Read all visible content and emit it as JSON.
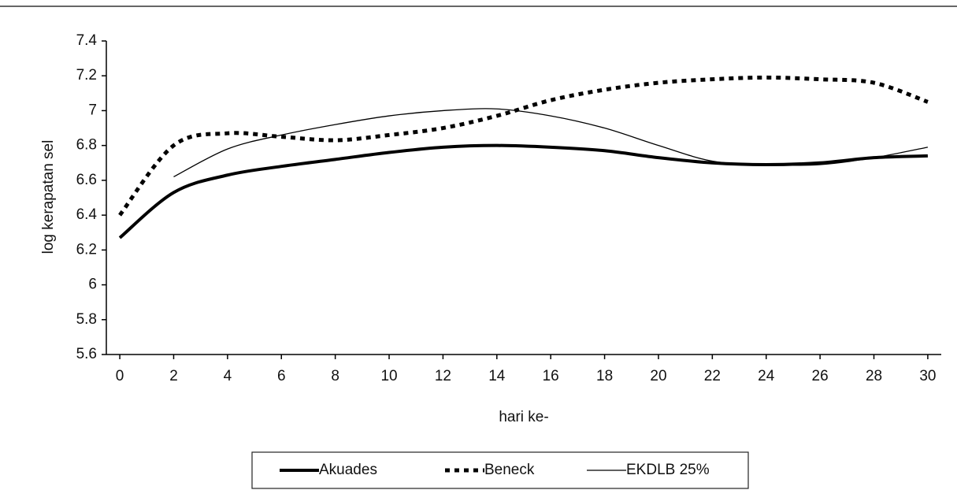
{
  "chart_data": {
    "type": "line",
    "x_label": "hari ke-",
    "y_label": "log kerapatan sel",
    "x": [
      0,
      2,
      4,
      6,
      8,
      10,
      12,
      14,
      16,
      18,
      20,
      22,
      24,
      26,
      28,
      30
    ],
    "series": [
      {
        "name": "Akuades",
        "color": "#000000",
        "style": "solid-thick",
        "values": [
          6.27,
          6.53,
          6.63,
          6.68,
          6.72,
          6.76,
          6.79,
          6.8,
          6.79,
          6.77,
          6.73,
          6.7,
          6.69,
          6.7,
          6.73,
          6.74
        ]
      },
      {
        "name": "Beneck",
        "color": "#000000",
        "style": "dotted",
        "values": [
          6.4,
          6.8,
          6.87,
          6.85,
          6.83,
          6.86,
          6.9,
          6.97,
          7.06,
          7.12,
          7.16,
          7.18,
          7.19,
          7.18,
          7.16,
          7.05
        ]
      },
      {
        "name": "EKDLB 25%",
        "color": "#000000",
        "style": "solid-thin",
        "values": [
          null,
          6.62,
          6.78,
          6.86,
          6.92,
          6.97,
          7.0,
          7.01,
          6.97,
          6.9,
          6.8,
          6.71,
          6.69,
          6.69,
          6.73,
          6.79
        ]
      }
    ],
    "xlim": [
      -0.5,
      30.5
    ],
    "xticks": [
      0,
      2,
      4,
      6,
      8,
      10,
      12,
      14,
      16,
      18,
      20,
      22,
      24,
      26,
      28,
      30
    ],
    "ylim": [
      5.6,
      7.4
    ],
    "yticks": [
      5.6,
      5.8,
      6,
      6.2,
      6.4,
      6.6,
      6.8,
      7,
      7.2,
      7.4
    ],
    "legend": "bottom"
  }
}
